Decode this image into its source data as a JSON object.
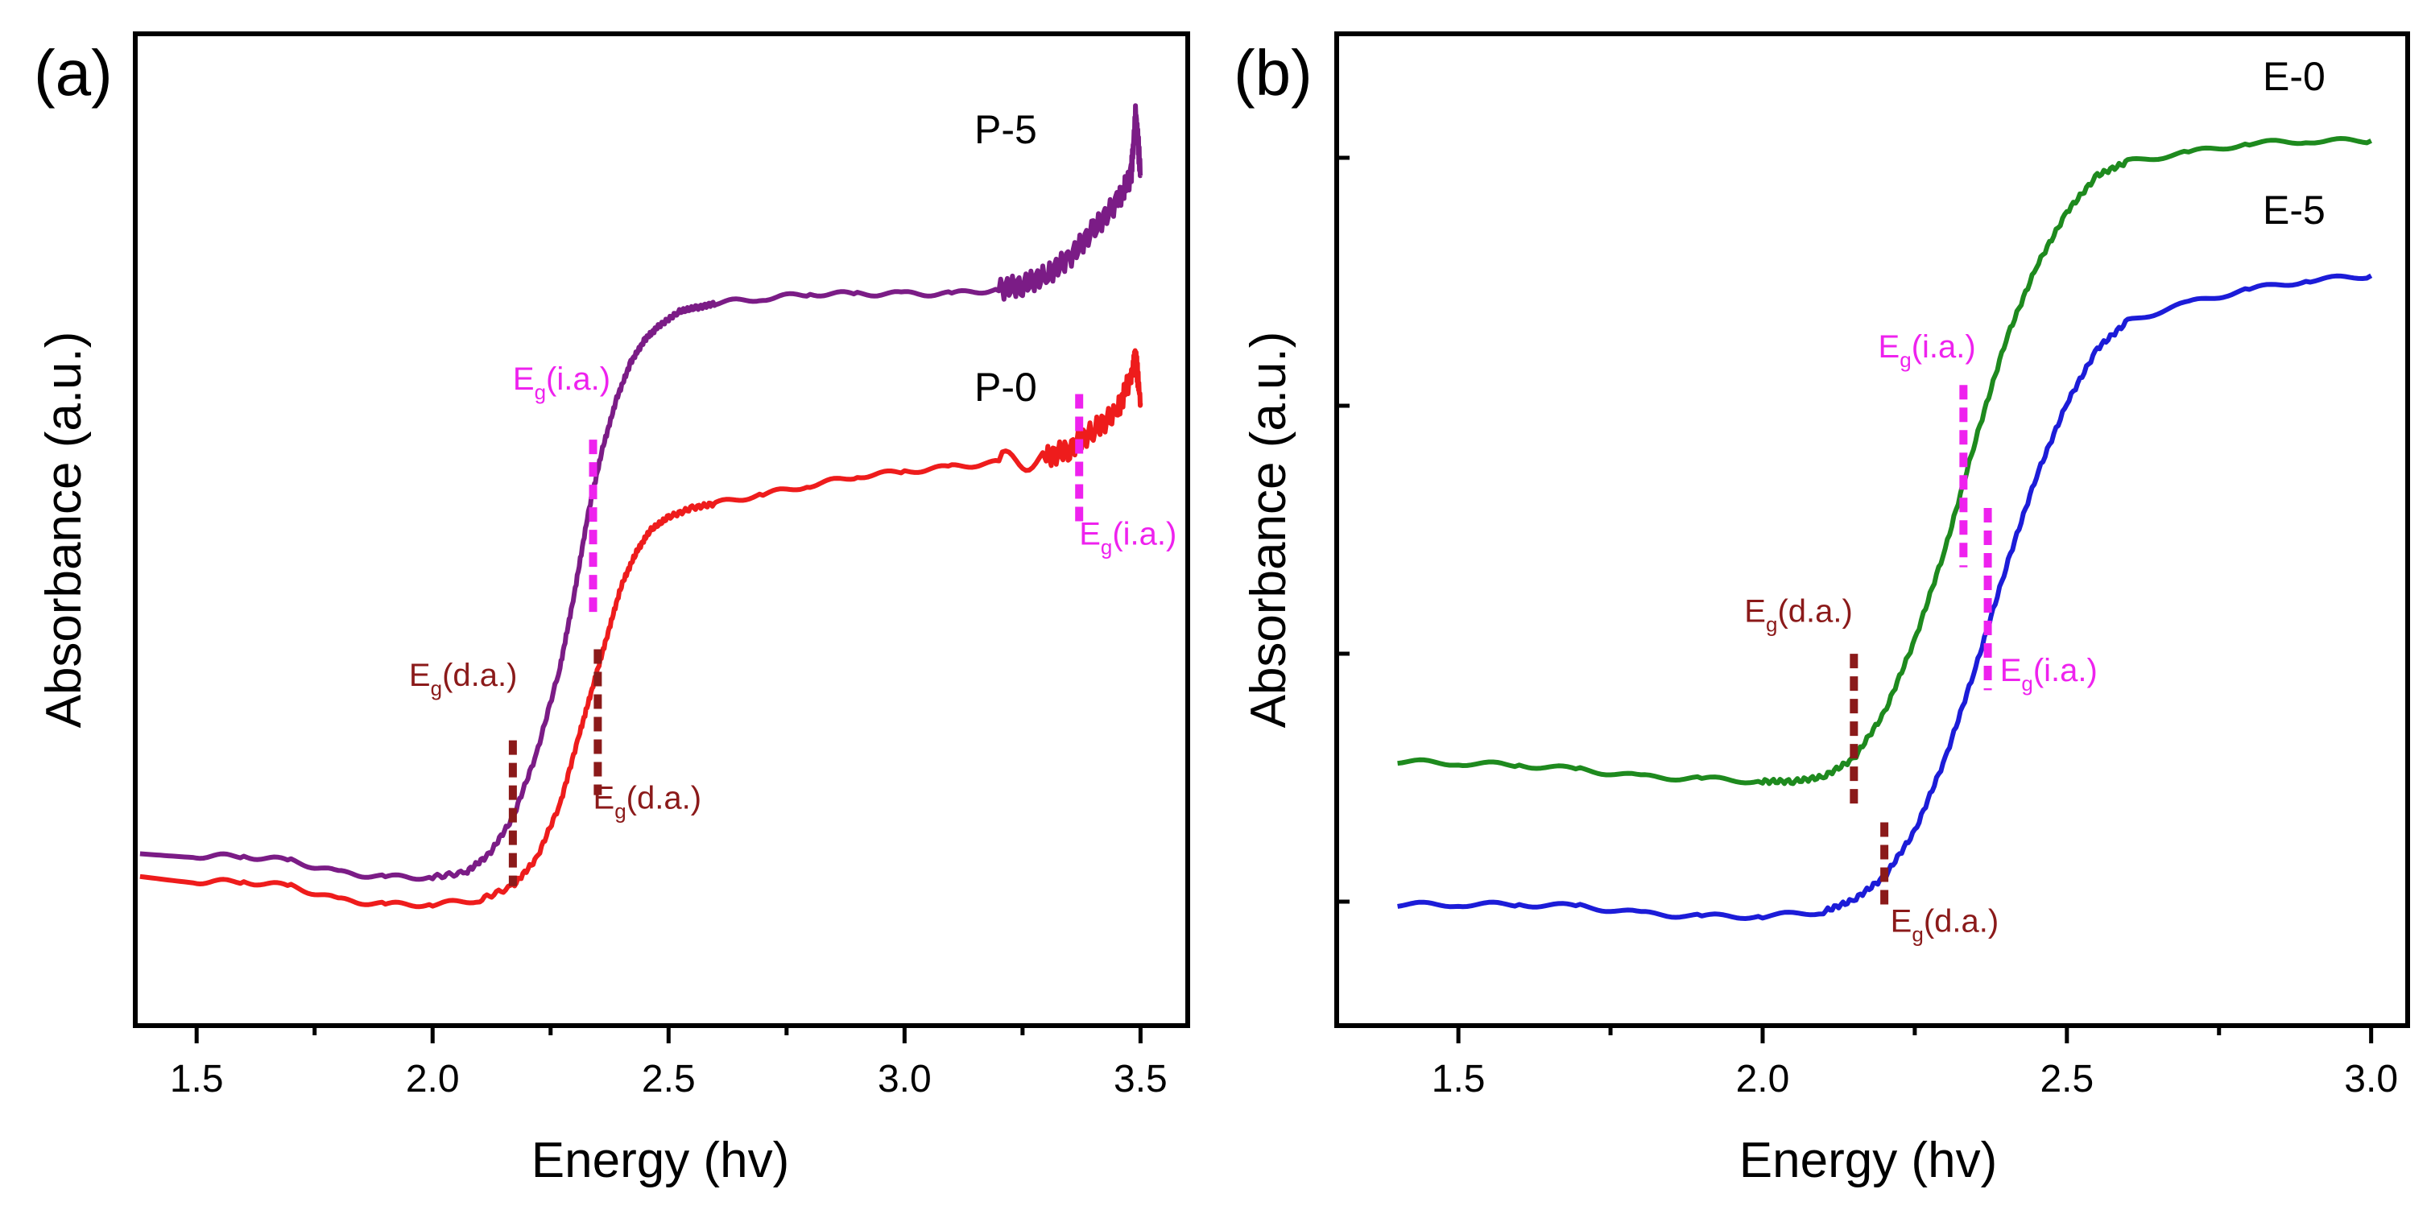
{
  "chart_data": [
    {
      "type": "line",
      "panel_label": "(a)",
      "xlabel": "Energy (hv)",
      "ylabel": "Absorbance (a.u.)",
      "xlim": [
        1.37,
        3.6
      ],
      "ylim": [
        0,
        1
      ],
      "x_ticks": [
        1.5,
        2.0,
        2.5,
        3.0,
        3.5
      ],
      "x_tick_labels": [
        "1.5",
        "2.0",
        "2.5",
        "3.0",
        "3.5"
      ],
      "series": [
        {
          "name": "P-5",
          "label": "P-5",
          "color": "#7B1C86",
          "x": [
            1.38,
            1.5,
            1.6,
            1.7,
            1.8,
            1.9,
            2.0,
            2.07,
            2.12,
            2.17,
            2.22,
            2.27,
            2.3,
            2.33,
            2.36,
            2.39,
            2.42,
            2.45,
            2.48,
            2.52,
            2.56,
            2.6,
            2.7,
            2.8,
            2.9,
            3.0,
            3.1,
            3.2,
            3.25,
            3.3,
            3.35,
            3.4,
            3.45,
            3.48,
            3.49,
            3.5
          ],
          "y": [
            0.135,
            0.133,
            0.133,
            0.128,
            0.115,
            0.11,
            0.11,
            0.115,
            0.135,
            0.175,
            0.245,
            0.34,
            0.42,
            0.51,
            0.58,
            0.635,
            0.675,
            0.7,
            0.715,
            0.73,
            0.735,
            0.74,
            0.745,
            0.75,
            0.75,
            0.75,
            0.75,
            0.755,
            0.76,
            0.77,
            0.79,
            0.82,
            0.85,
            0.88,
            0.95,
            0.88
          ]
        },
        {
          "name": "P-0",
          "label": "P-0",
          "color": "#EE1C1C",
          "x": [
            1.38,
            1.5,
            1.6,
            1.7,
            1.8,
            1.9,
            2.0,
            2.1,
            2.17,
            2.22,
            2.27,
            2.31,
            2.34,
            2.37,
            2.4,
            2.43,
            2.46,
            2.5,
            2.55,
            2.6,
            2.7,
            2.8,
            2.9,
            3.0,
            3.1,
            3.2,
            3.3,
            3.35,
            3.4,
            3.45,
            3.48,
            3.49,
            3.5
          ],
          "y": [
            0.11,
            0.105,
            0.105,
            0.1,
            0.085,
            0.08,
            0.08,
            0.085,
            0.1,
            0.13,
            0.19,
            0.265,
            0.32,
            0.375,
            0.43,
            0.465,
            0.49,
            0.505,
            0.515,
            0.52,
            0.53,
            0.54,
            0.55,
            0.555,
            0.56,
            0.565,
            0.57,
            0.58,
            0.6,
            0.62,
            0.66,
            0.68,
            0.63
          ]
        }
      ],
      "annotations": [
        {
          "base": "E",
          "sub": "g",
          "text": "(i.a.)",
          "color": "#EE22EE",
          "x": 2.17,
          "y": 0.645
        },
        {
          "base": "E",
          "sub": "g",
          "text": "(i.a.)",
          "color": "#EE22EE",
          "x": 3.37,
          "y": 0.475
        },
        {
          "base": "E",
          "sub": "g",
          "text": "(d.a.)",
          "color": "#8B1A1A",
          "x": 1.95,
          "y": 0.32
        },
        {
          "base": "E",
          "sub": "g",
          "text": "(d.a.)",
          "color": "#8B1A1A",
          "x": 2.34,
          "y": 0.185
        }
      ],
      "markers": [
        {
          "x": 2.34,
          "y_from": 0.59,
          "y_to": 0.4,
          "color": "#EE22EE"
        },
        {
          "x": 3.37,
          "y_from": 0.64,
          "y_to": 0.5,
          "color": "#EE22EE"
        },
        {
          "x": 2.17,
          "y_from": 0.26,
          "y_to": 0.1,
          "color": "#8B1A1A"
        },
        {
          "x": 2.35,
          "y_from": 0.36,
          "y_to": 0.2,
          "color": "#8B1A1A"
        }
      ]
    },
    {
      "type": "line",
      "panel_label": "(b)",
      "xlabel": "Energy (hv)",
      "ylabel": "Absorbance (a.u.)",
      "xlim": [
        1.3,
        3.06
      ],
      "ylim": [
        0,
        1
      ],
      "x_ticks": [
        1.5,
        2.0,
        2.5,
        3.0
      ],
      "x_tick_labels": [
        "1.5",
        "2.0",
        "2.5",
        "3.0"
      ],
      "y_ticks": [
        0.125,
        0.375,
        0.625,
        0.875
      ],
      "series": [
        {
          "name": "E-0",
          "label": "E-0",
          "color": "#1E8A1E",
          "x": [
            1.4,
            1.5,
            1.6,
            1.7,
            1.8,
            1.9,
            2.0,
            2.05,
            2.1,
            2.15,
            2.2,
            2.25,
            2.3,
            2.35,
            2.4,
            2.45,
            2.5,
            2.55,
            2.6,
            2.7,
            2.8,
            2.9,
            3.0
          ],
          "y": [
            0.237,
            0.235,
            0.233,
            0.228,
            0.22,
            0.218,
            0.215,
            0.215,
            0.22,
            0.24,
            0.29,
            0.37,
            0.47,
            0.59,
            0.7,
            0.78,
            0.84,
            0.88,
            0.895,
            0.905,
            0.915,
            0.918,
            0.918
          ]
        },
        {
          "name": "E-5",
          "label": "E-5",
          "color": "#1C1CD8",
          "x": [
            1.4,
            1.5,
            1.6,
            1.7,
            1.8,
            1.9,
            2.0,
            2.1,
            2.15,
            2.2,
            2.25,
            2.3,
            2.35,
            2.4,
            2.45,
            2.5,
            2.55,
            2.6,
            2.7,
            2.8,
            2.9,
            3.0
          ],
          "y": [
            0.08,
            0.08,
            0.08,
            0.078,
            0.07,
            0.067,
            0.067,
            0.072,
            0.085,
            0.11,
            0.16,
            0.24,
            0.34,
            0.45,
            0.55,
            0.63,
            0.69,
            0.72,
            0.74,
            0.755,
            0.765,
            0.77
          ]
        }
      ],
      "annotations": [
        {
          "base": "E",
          "sub": "g",
          "text": "(i.a.)",
          "color": "#EE22EE",
          "x": 2.19,
          "y": 0.68
        },
        {
          "base": "E",
          "sub": "g",
          "text": "(i.a.)",
          "color": "#EE22EE",
          "x": 2.39,
          "y": 0.325
        },
        {
          "base": "E",
          "sub": "g",
          "text": "(d.a.)",
          "color": "#8B1A1A",
          "x": 1.97,
          "y": 0.39
        },
        {
          "base": "E",
          "sub": "g",
          "text": "(d.a.)",
          "color": "#8B1A1A",
          "x": 2.21,
          "y": 0.05
        }
      ],
      "markers": [
        {
          "x": 2.33,
          "y_from": 0.65,
          "y_to": 0.45,
          "color": "#EE22EE"
        },
        {
          "x": 2.37,
          "y_from": 0.515,
          "y_to": 0.315,
          "color": "#EE22EE"
        },
        {
          "x": 2.15,
          "y_from": 0.355,
          "y_to": 0.19,
          "color": "#8B1A1A"
        },
        {
          "x": 2.2,
          "y_from": 0.17,
          "y_to": 0.08,
          "color": "#8B1A1A"
        }
      ]
    }
  ]
}
